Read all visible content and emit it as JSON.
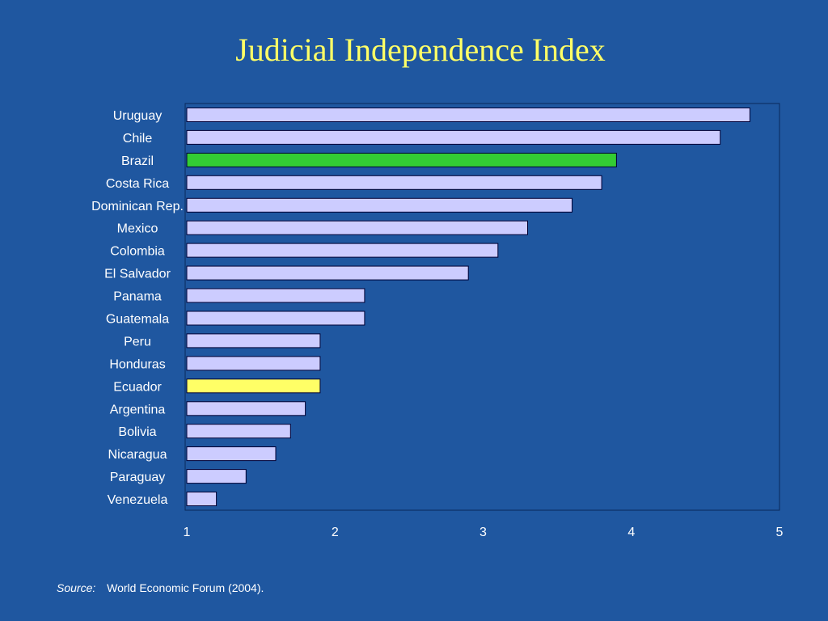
{
  "chart_data": {
    "type": "bar",
    "orientation": "horizontal",
    "title": "Judicial Independence Index",
    "categories": [
      "Uruguay",
      "Chile",
      "Brazil",
      "Costa Rica",
      "Dominican Rep.",
      "Mexico",
      "Colombia",
      "El Salvador",
      "Panama",
      "Guatemala",
      "Peru",
      "Honduras",
      "Ecuador",
      "Argentina",
      "Bolivia",
      "Nicaragua",
      "Paraguay",
      "Venezuela"
    ],
    "values": [
      4.8,
      4.6,
      3.9,
      3.8,
      3.6,
      3.3,
      3.1,
      2.9,
      2.2,
      2.2,
      1.9,
      1.9,
      1.9,
      1.8,
      1.7,
      1.6,
      1.4,
      1.2
    ],
    "highlights": {
      "Brazil": "#33cc33",
      "Ecuador": "#ffff66"
    },
    "bar_color": "#ccccff",
    "xlim": [
      1,
      5
    ],
    "xticks": [
      "1",
      "2",
      "3",
      "4",
      "5"
    ],
    "grid": false,
    "legend": "none"
  },
  "source": {
    "label": "Source:",
    "text": "World Economic Forum (2004)."
  },
  "colors": {
    "background": "#1f57a0",
    "title": "#ffff66",
    "text": "#ffffff"
  }
}
